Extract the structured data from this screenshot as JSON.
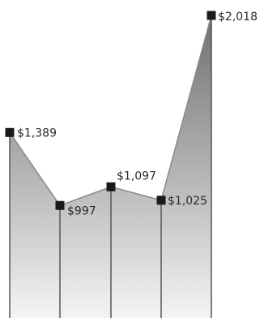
{
  "chart_data": {
    "type": "area",
    "categories": [
      "",
      "",
      "",
      "",
      ""
    ],
    "series": [
      {
        "values": [
          1389,
          997,
          1097,
          1025,
          2018
        ]
      }
    ],
    "data_labels": [
      "$1,389",
      "$997",
      "$1,097",
      "$1,025",
      "$2,018"
    ],
    "ylim": [
      0,
      2018
    ],
    "grid": false,
    "legend": "none",
    "colors": {
      "fill_top": "#6f6f6f",
      "fill_bottom": "#f4f4f4",
      "line": "#8a8a8a",
      "marker": "#1a1a1a",
      "drop_line": "#555555"
    }
  }
}
